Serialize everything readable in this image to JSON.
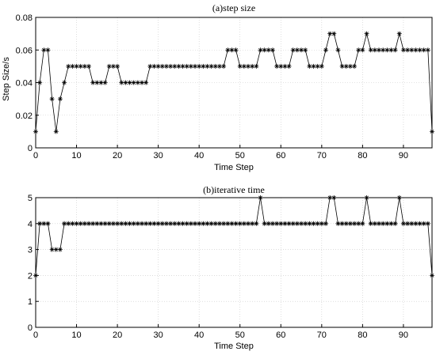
{
  "chart_data": [
    {
      "type": "line",
      "title": "(a)step size",
      "xlabel": "Time Step",
      "ylabel": "Step Size/s",
      "xlim": [
        0,
        97
      ],
      "ylim": [
        0,
        0.08
      ],
      "xticks": [
        "0",
        "10",
        "20",
        "30",
        "40",
        "50",
        "60",
        "70",
        "80",
        "90"
      ],
      "yticks": [
        "0",
        "0.02",
        "0.04",
        "0.06",
        "0.08"
      ],
      "grid": true,
      "marker": "asterisk",
      "series": [
        {
          "values": [
            0.01,
            0.04,
            0.06,
            0.06,
            0.03,
            0.01,
            0.03,
            0.04,
            0.05,
            0.05,
            0.05,
            0.05,
            0.05,
            0.05,
            0.04,
            0.04,
            0.04,
            0.04,
            0.05,
            0.05,
            0.05,
            0.04,
            0.04,
            0.04,
            0.04,
            0.04,
            0.04,
            0.04,
            0.05,
            0.05,
            0.05,
            0.05,
            0.05,
            0.05,
            0.05,
            0.05,
            0.05,
            0.05,
            0.05,
            0.05,
            0.05,
            0.05,
            0.05,
            0.05,
            0.05,
            0.05,
            0.05,
            0.06,
            0.06,
            0.06,
            0.05,
            0.05,
            0.05,
            0.05,
            0.05,
            0.06,
            0.06,
            0.06,
            0.06,
            0.05,
            0.05,
            0.05,
            0.05,
            0.06,
            0.06,
            0.06,
            0.06,
            0.05,
            0.05,
            0.05,
            0.05,
            0.06,
            0.07,
            0.07,
            0.06,
            0.05,
            0.05,
            0.05,
            0.05,
            0.06,
            0.06,
            0.07,
            0.06,
            0.06,
            0.06,
            0.06,
            0.06,
            0.06,
            0.06,
            0.07,
            0.06,
            0.06,
            0.06,
            0.06,
            0.06,
            0.06,
            0.06,
            0.01
          ]
        }
      ]
    },
    {
      "type": "line",
      "title": "(b)iterative time",
      "xlabel": "Time Step",
      "ylabel": "",
      "xlim": [
        0,
        97
      ],
      "ylim": [
        0,
        5
      ],
      "xticks": [
        "0",
        "10",
        "20",
        "30",
        "40",
        "50",
        "60",
        "70",
        "80",
        "90"
      ],
      "yticks": [
        "0",
        "1",
        "2",
        "3",
        "4",
        "5"
      ],
      "grid": true,
      "marker": "asterisk",
      "series": [
        {
          "values": [
            2,
            4,
            4,
            4,
            3,
            3,
            3,
            4,
            4,
            4,
            4,
            4,
            4,
            4,
            4,
            4,
            4,
            4,
            4,
            4,
            4,
            4,
            4,
            4,
            4,
            4,
            4,
            4,
            4,
            4,
            4,
            4,
            4,
            4,
            4,
            4,
            4,
            4,
            4,
            4,
            4,
            4,
            4,
            4,
            4,
            4,
            4,
            4,
            4,
            4,
            4,
            4,
            4,
            4,
            4,
            5,
            4,
            4,
            4,
            4,
            4,
            4,
            4,
            4,
            4,
            4,
            4,
            4,
            4,
            4,
            4,
            4,
            5,
            5,
            4,
            4,
            4,
            4,
            4,
            4,
            4,
            5,
            4,
            4,
            4,
            4,
            4,
            4,
            4,
            5,
            4,
            4,
            4,
            4,
            4,
            4,
            4,
            2
          ]
        }
      ]
    }
  ]
}
